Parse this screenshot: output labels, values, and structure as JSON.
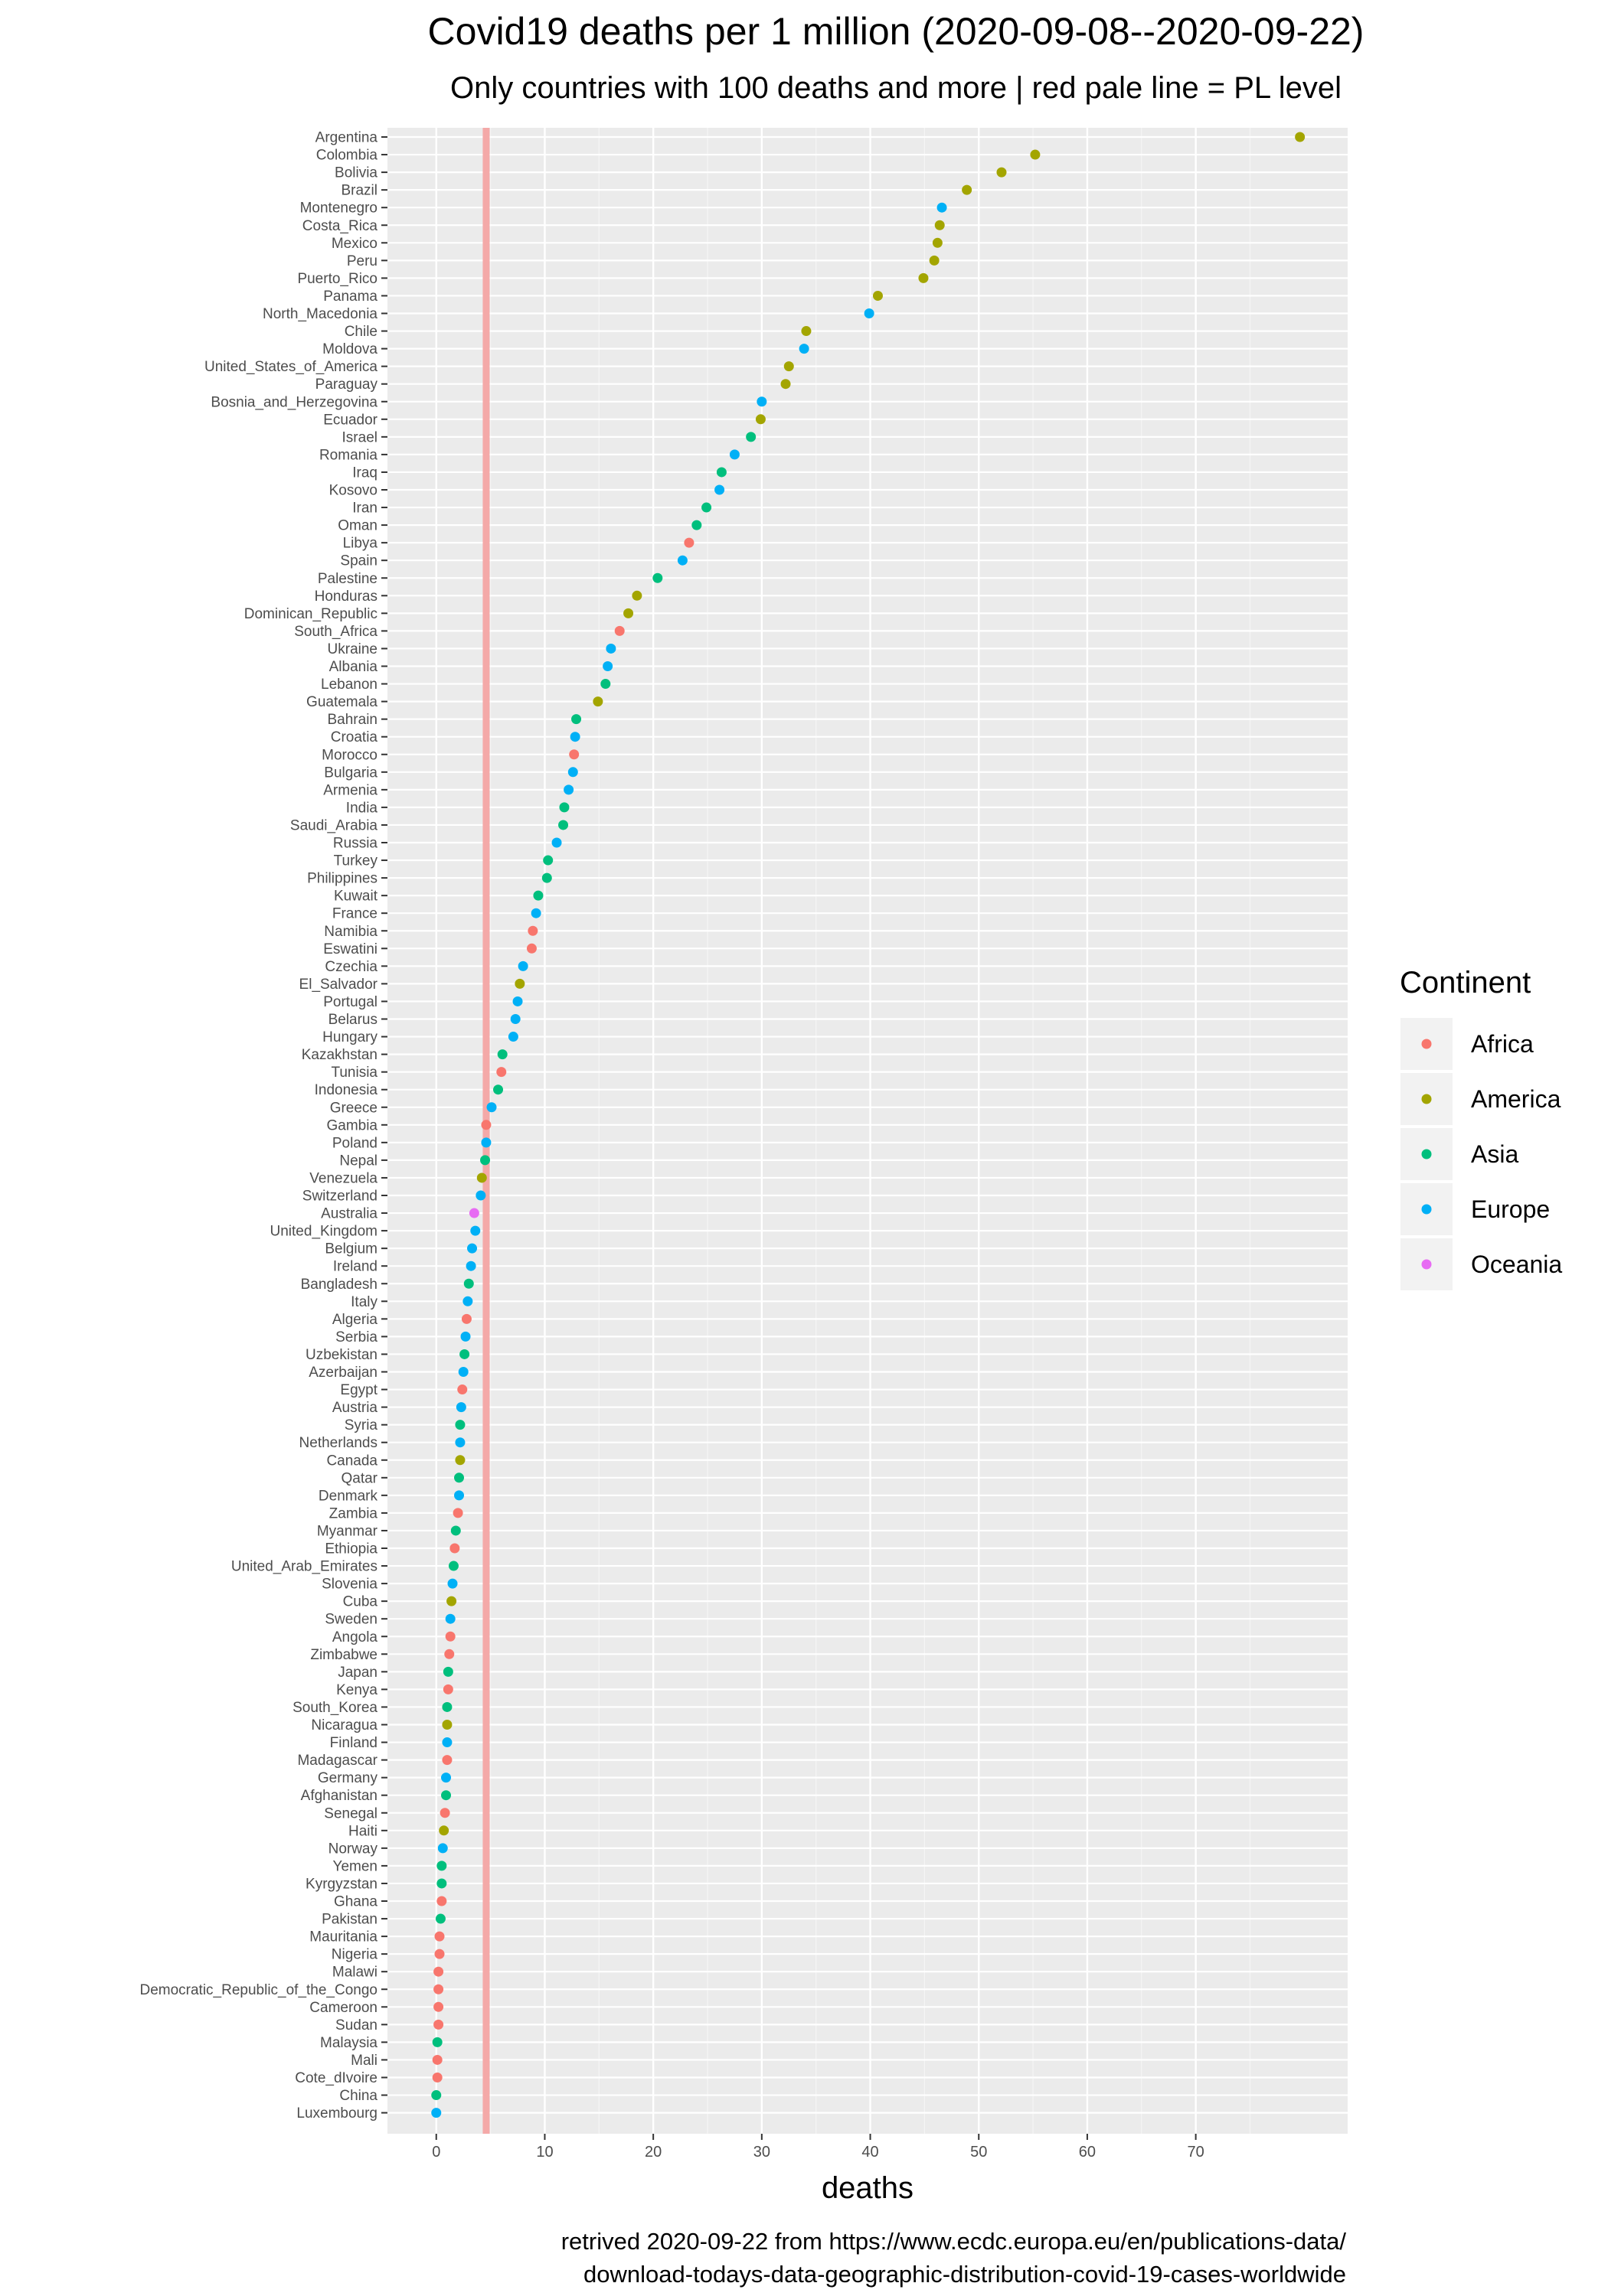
{
  "chart_data": {
    "type": "scatter",
    "title": "Covid19 deaths per 1 million (2020-09-08--2020-09-22)",
    "subtitle": "Only countries with 100 deaths and more | red pale line = PL level",
    "xlabel": "deaths",
    "ylabel": "",
    "xlim": [
      -4.5,
      84
    ],
    "xticks": [
      0,
      10,
      20,
      30,
      40,
      50,
      60,
      70
    ],
    "grid": true,
    "reference_line": {
      "x": 4.6,
      "label": "PL level",
      "color": "#F4A9A8"
    },
    "legend": {
      "title": "Continent",
      "placement": "right",
      "items": [
        {
          "name": "Africa",
          "color": "#F8766D"
        },
        {
          "name": "America",
          "color": "#A3A500"
        },
        {
          "name": "Asia",
          "color": "#00BF7D"
        },
        {
          "name": "Europe",
          "color": "#00B0F6"
        },
        {
          "name": "Oceania",
          "color": "#E76BF3"
        }
      ]
    },
    "caption_lines": [
      "retrived 2020-09-22 from https://www.ecdc.europa.eu/en/publications-data/",
      "download-todays-data-geographic-distribution-covid-19-cases-worldwide"
    ],
    "points": [
      {
        "country": "Argentina",
        "continent": "America",
        "value": 79.6
      },
      {
        "country": "Colombia",
        "continent": "America",
        "value": 55.2
      },
      {
        "country": "Bolivia",
        "continent": "America",
        "value": 52.1
      },
      {
        "country": "Brazil",
        "continent": "America",
        "value": 48.9
      },
      {
        "country": "Montenegro",
        "continent": "Europe",
        "value": 46.6
      },
      {
        "country": "Costa_Rica",
        "continent": "America",
        "value": 46.4
      },
      {
        "country": "Mexico",
        "continent": "America",
        "value": 46.2
      },
      {
        "country": "Peru",
        "continent": "America",
        "value": 45.9
      },
      {
        "country": "Puerto_Rico",
        "continent": "America",
        "value": 44.9
      },
      {
        "country": "Panama",
        "continent": "America",
        "value": 40.7
      },
      {
        "country": "North_Macedonia",
        "continent": "Europe",
        "value": 39.9
      },
      {
        "country": "Chile",
        "continent": "America",
        "value": 34.1
      },
      {
        "country": "Moldova",
        "continent": "Europe",
        "value": 33.9
      },
      {
        "country": "United_States_of_America",
        "continent": "America",
        "value": 32.5
      },
      {
        "country": "Paraguay",
        "continent": "America",
        "value": 32.2
      },
      {
        "country": "Bosnia_and_Herzegovina",
        "continent": "Europe",
        "value": 30.0
      },
      {
        "country": "Ecuador",
        "continent": "America",
        "value": 29.9
      },
      {
        "country": "Israel",
        "continent": "Asia",
        "value": 29.0
      },
      {
        "country": "Romania",
        "continent": "Europe",
        "value": 27.5
      },
      {
        "country": "Iraq",
        "continent": "Asia",
        "value": 26.3
      },
      {
        "country": "Kosovo",
        "continent": "Europe",
        "value": 26.1
      },
      {
        "country": "Iran",
        "continent": "Asia",
        "value": 24.9
      },
      {
        "country": "Oman",
        "continent": "Asia",
        "value": 24.0
      },
      {
        "country": "Libya",
        "continent": "Africa",
        "value": 23.3
      },
      {
        "country": "Spain",
        "continent": "Europe",
        "value": 22.7
      },
      {
        "country": "Palestine",
        "continent": "Asia",
        "value": 20.4
      },
      {
        "country": "Honduras",
        "continent": "America",
        "value": 18.5
      },
      {
        "country": "Dominican_Republic",
        "continent": "America",
        "value": 17.7
      },
      {
        "country": "South_Africa",
        "continent": "Africa",
        "value": 16.9
      },
      {
        "country": "Ukraine",
        "continent": "Europe",
        "value": 16.1
      },
      {
        "country": "Albania",
        "continent": "Europe",
        "value": 15.8
      },
      {
        "country": "Lebanon",
        "continent": "Asia",
        "value": 15.6
      },
      {
        "country": "Guatemala",
        "continent": "America",
        "value": 14.9
      },
      {
        "country": "Bahrain",
        "continent": "Asia",
        "value": 12.9
      },
      {
        "country": "Croatia",
        "continent": "Europe",
        "value": 12.8
      },
      {
        "country": "Morocco",
        "continent": "Africa",
        "value": 12.7
      },
      {
        "country": "Bulgaria",
        "continent": "Europe",
        "value": 12.6
      },
      {
        "country": "Armenia",
        "continent": "Europe",
        "value": 12.2
      },
      {
        "country": "India",
        "continent": "Asia",
        "value": 11.8
      },
      {
        "country": "Saudi_Arabia",
        "continent": "Asia",
        "value": 11.7
      },
      {
        "country": "Russia",
        "continent": "Europe",
        "value": 11.1
      },
      {
        "country": "Turkey",
        "continent": "Asia",
        "value": 10.3
      },
      {
        "country": "Philippines",
        "continent": "Asia",
        "value": 10.2
      },
      {
        "country": "Kuwait",
        "continent": "Asia",
        "value": 9.4
      },
      {
        "country": "France",
        "continent": "Europe",
        "value": 9.2
      },
      {
        "country": "Namibia",
        "continent": "Africa",
        "value": 8.9
      },
      {
        "country": "Eswatini",
        "continent": "Africa",
        "value": 8.8
      },
      {
        "country": "Czechia",
        "continent": "Europe",
        "value": 8.0
      },
      {
        "country": "El_Salvador",
        "continent": "America",
        "value": 7.7
      },
      {
        "country": "Portugal",
        "continent": "Europe",
        "value": 7.5
      },
      {
        "country": "Belarus",
        "continent": "Europe",
        "value": 7.3
      },
      {
        "country": "Hungary",
        "continent": "Europe",
        "value": 7.1
      },
      {
        "country": "Kazakhstan",
        "continent": "Asia",
        "value": 6.1
      },
      {
        "country": "Tunisia",
        "continent": "Africa",
        "value": 6.0
      },
      {
        "country": "Indonesia",
        "continent": "Asia",
        "value": 5.7
      },
      {
        "country": "Greece",
        "continent": "Europe",
        "value": 5.1
      },
      {
        "country": "Gambia",
        "continent": "Africa",
        "value": 4.6
      },
      {
        "country": "Poland",
        "continent": "Europe",
        "value": 4.6
      },
      {
        "country": "Nepal",
        "continent": "Asia",
        "value": 4.5
      },
      {
        "country": "Venezuela",
        "continent": "America",
        "value": 4.2
      },
      {
        "country": "Switzerland",
        "continent": "Europe",
        "value": 4.1
      },
      {
        "country": "Australia",
        "continent": "Oceania",
        "value": 3.5
      },
      {
        "country": "United_Kingdom",
        "continent": "Europe",
        "value": 3.6
      },
      {
        "country": "Belgium",
        "continent": "Europe",
        "value": 3.3
      },
      {
        "country": "Ireland",
        "continent": "Europe",
        "value": 3.2
      },
      {
        "country": "Bangladesh",
        "continent": "Asia",
        "value": 3.0
      },
      {
        "country": "Italy",
        "continent": "Europe",
        "value": 2.9
      },
      {
        "country": "Algeria",
        "continent": "Africa",
        "value": 2.8
      },
      {
        "country": "Serbia",
        "continent": "Europe",
        "value": 2.7
      },
      {
        "country": "Uzbekistan",
        "continent": "Asia",
        "value": 2.6
      },
      {
        "country": "Azerbaijan",
        "continent": "Europe",
        "value": 2.5
      },
      {
        "country": "Egypt",
        "continent": "Africa",
        "value": 2.4
      },
      {
        "country": "Austria",
        "continent": "Europe",
        "value": 2.3
      },
      {
        "country": "Syria",
        "continent": "Asia",
        "value": 2.2
      },
      {
        "country": "Netherlands",
        "continent": "Europe",
        "value": 2.2
      },
      {
        "country": "Canada",
        "continent": "America",
        "value": 2.2
      },
      {
        "country": "Qatar",
        "continent": "Asia",
        "value": 2.1
      },
      {
        "country": "Denmark",
        "continent": "Europe",
        "value": 2.1
      },
      {
        "country": "Zambia",
        "continent": "Africa",
        "value": 2.0
      },
      {
        "country": "Myanmar",
        "continent": "Asia",
        "value": 1.8
      },
      {
        "country": "Ethiopia",
        "continent": "Africa",
        "value": 1.7
      },
      {
        "country": "United_Arab_Emirates",
        "continent": "Asia",
        "value": 1.6
      },
      {
        "country": "Slovenia",
        "continent": "Europe",
        "value": 1.5
      },
      {
        "country": "Cuba",
        "continent": "America",
        "value": 1.4
      },
      {
        "country": "Sweden",
        "continent": "Europe",
        "value": 1.3
      },
      {
        "country": "Angola",
        "continent": "Africa",
        "value": 1.3
      },
      {
        "country": "Zimbabwe",
        "continent": "Africa",
        "value": 1.2
      },
      {
        "country": "Japan",
        "continent": "Asia",
        "value": 1.1
      },
      {
        "country": "Kenya",
        "continent": "Africa",
        "value": 1.1
      },
      {
        "country": "South_Korea",
        "continent": "Asia",
        "value": 1.0
      },
      {
        "country": "Nicaragua",
        "continent": "America",
        "value": 1.0
      },
      {
        "country": "Finland",
        "continent": "Europe",
        "value": 1.0
      },
      {
        "country": "Madagascar",
        "continent": "Africa",
        "value": 1.0
      },
      {
        "country": "Germany",
        "continent": "Europe",
        "value": 0.9
      },
      {
        "country": "Afghanistan",
        "continent": "Asia",
        "value": 0.9
      },
      {
        "country": "Senegal",
        "continent": "Africa",
        "value": 0.8
      },
      {
        "country": "Haiti",
        "continent": "America",
        "value": 0.7
      },
      {
        "country": "Norway",
        "continent": "Europe",
        "value": 0.6
      },
      {
        "country": "Yemen",
        "continent": "Asia",
        "value": 0.5
      },
      {
        "country": "Kyrgyzstan",
        "continent": "Asia",
        "value": 0.5
      },
      {
        "country": "Ghana",
        "continent": "Africa",
        "value": 0.5
      },
      {
        "country": "Pakistan",
        "continent": "Asia",
        "value": 0.4
      },
      {
        "country": "Mauritania",
        "continent": "Africa",
        "value": 0.3
      },
      {
        "country": "Nigeria",
        "continent": "Africa",
        "value": 0.3
      },
      {
        "country": "Malawi",
        "continent": "Africa",
        "value": 0.2
      },
      {
        "country": "Democratic_Republic_of_the_Congo",
        "continent": "Africa",
        "value": 0.2
      },
      {
        "country": "Cameroon",
        "continent": "Africa",
        "value": 0.2
      },
      {
        "country": "Sudan",
        "continent": "Africa",
        "value": 0.2
      },
      {
        "country": "Malaysia",
        "continent": "Asia",
        "value": 0.1
      },
      {
        "country": "Mali",
        "continent": "Africa",
        "value": 0.1
      },
      {
        "country": "Cote_dIvoire",
        "continent": "Africa",
        "value": 0.1
      },
      {
        "country": "China",
        "continent": "Asia",
        "value": 0.0
      },
      {
        "country": "Luxembourg",
        "continent": "Europe",
        "value": 0.0
      }
    ]
  }
}
